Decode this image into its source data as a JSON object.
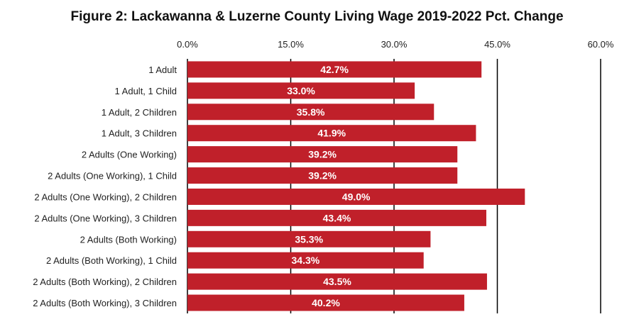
{
  "chart_data": {
    "type": "bar",
    "orientation": "horizontal",
    "title": "Figure 2: Lackawanna & Luzerne County Living Wage 2019-2022 Pct. Change",
    "categories": [
      "1 Adult",
      "1 Adult, 1 Child",
      "1 Adult, 2 Children",
      "1 Adult, 3 Children",
      "2 Adults (One Working)",
      "2 Adults (One Working), 1 Child",
      "2 Adults (One Working), 2 Children",
      "2 Adults (One Working), 3 Children",
      "2 Adults (Both Working)",
      "2 Adults (Both Working), 1 Child",
      "2 Adults (Both Working), 2 Children",
      "2 Adults (Both Working), 3 Children"
    ],
    "values": [
      42.7,
      33.0,
      35.8,
      41.9,
      39.2,
      39.2,
      49.0,
      43.4,
      35.3,
      34.3,
      43.5,
      40.2
    ],
    "data_labels": [
      "42.7%",
      "33.0%",
      "35.8%",
      "41.9%",
      "39.2%",
      "39.2%",
      "49.0%",
      "43.4%",
      "35.3%",
      "34.3%",
      "43.5%",
      "40.2%"
    ],
    "x_ticks": [
      0,
      15,
      30,
      45,
      60
    ],
    "x_tick_labels": [
      "0.0%",
      "15.0%",
      "30.0%",
      "45.0%",
      "60.0%"
    ],
    "xlim": [
      0,
      60
    ],
    "x_axis_position": "top",
    "grid": true,
    "legend": "none",
    "colors": {
      "bar": "#c0202a",
      "grid": "#000000",
      "label": "#ffffff"
    }
  }
}
